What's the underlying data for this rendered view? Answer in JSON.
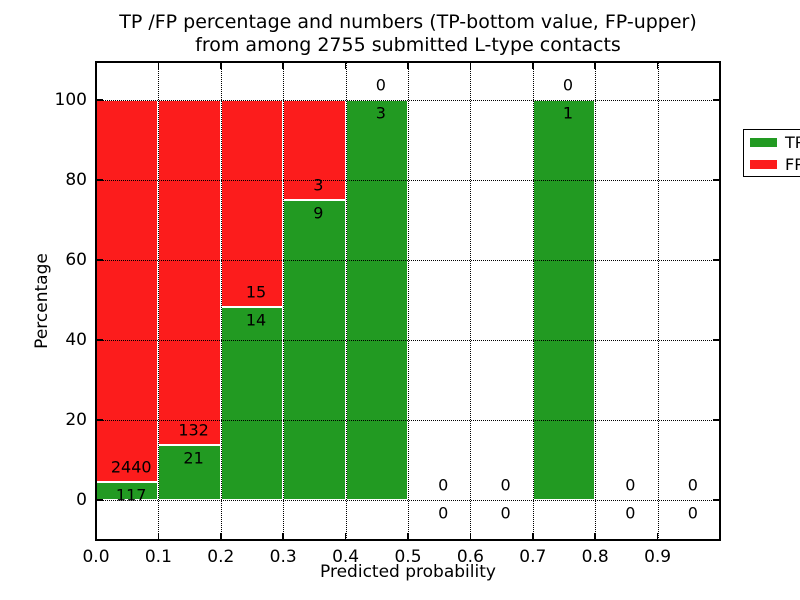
{
  "figure": {
    "title_line1": "TP /FP percentage and numbers (TP-bottom value, FP-upper)",
    "title_line2": "from among 2755 submitted L-type contacts"
  },
  "chart_data": {
    "type": "bar",
    "stacked": true,
    "title": "TP /FP percentage and numbers (TP-bottom value, FP-upper)\nfrom among 2755 submitted L-type contacts",
    "xlabel": "Predicted probability",
    "ylabel": "Percentage",
    "xlim": [
      0.0,
      1.0
    ],
    "ylim": [
      -10,
      110
    ],
    "xtick_labels": [
      "0.0",
      "0.1",
      "0.2",
      "0.3",
      "0.4",
      "0.5",
      "0.6",
      "0.7",
      "0.8",
      "0.9"
    ],
    "ytick_labels": [
      "0",
      "20",
      "40",
      "60",
      "80",
      "100"
    ],
    "ytick_values": [
      0,
      20,
      40,
      60,
      80,
      100
    ],
    "grid": {
      "style": "dotted",
      "which": "both",
      "axisbelow": false
    },
    "total_submitted": 2755,
    "colors": {
      "tp": "#229a22",
      "fp": "#fc1c1c",
      "bar_edge": "#ffffff"
    },
    "legend": {
      "position": "upper right",
      "entries": [
        {
          "label": "TP",
          "color": "#229a22"
        },
        {
          "label": "FP",
          "color": "#fc1c1c"
        }
      ]
    },
    "bins": [
      {
        "range": [
          0.0,
          0.1
        ],
        "tp_count": 117,
        "fp_count": 2440,
        "tp_pct": 4.58,
        "fp_pct": 95.42
      },
      {
        "range": [
          0.1,
          0.2
        ],
        "tp_count": 21,
        "fp_count": 132,
        "tp_pct": 13.73,
        "fp_pct": 86.27
      },
      {
        "range": [
          0.2,
          0.3
        ],
        "tp_count": 14,
        "fp_count": 15,
        "tp_pct": 48.28,
        "fp_pct": 51.72
      },
      {
        "range": [
          0.3,
          0.4
        ],
        "tp_count": 9,
        "fp_count": 3,
        "tp_pct": 75.0,
        "fp_pct": 25.0
      },
      {
        "range": [
          0.4,
          0.5
        ],
        "tp_count": 3,
        "fp_count": 0,
        "tp_pct": 100.0,
        "fp_pct": 0.0
      },
      {
        "range": [
          0.5,
          0.6
        ],
        "tp_count": 0,
        "fp_count": 0,
        "tp_pct": 0.0,
        "fp_pct": 0.0
      },
      {
        "range": [
          0.6,
          0.7
        ],
        "tp_count": 0,
        "fp_count": 0,
        "tp_pct": 0.0,
        "fp_pct": 0.0
      },
      {
        "range": [
          0.7,
          0.8
        ],
        "tp_count": 1,
        "fp_count": 0,
        "tp_pct": 100.0,
        "fp_pct": 0.0
      },
      {
        "range": [
          0.8,
          0.9
        ],
        "tp_count": 0,
        "fp_count": 0,
        "tp_pct": 0.0,
        "fp_pct": 0.0
      },
      {
        "range": [
          0.9,
          1.0
        ],
        "tp_count": 0,
        "fp_count": 0,
        "tp_pct": 0.0,
        "fp_pct": 0.0
      }
    ]
  }
}
